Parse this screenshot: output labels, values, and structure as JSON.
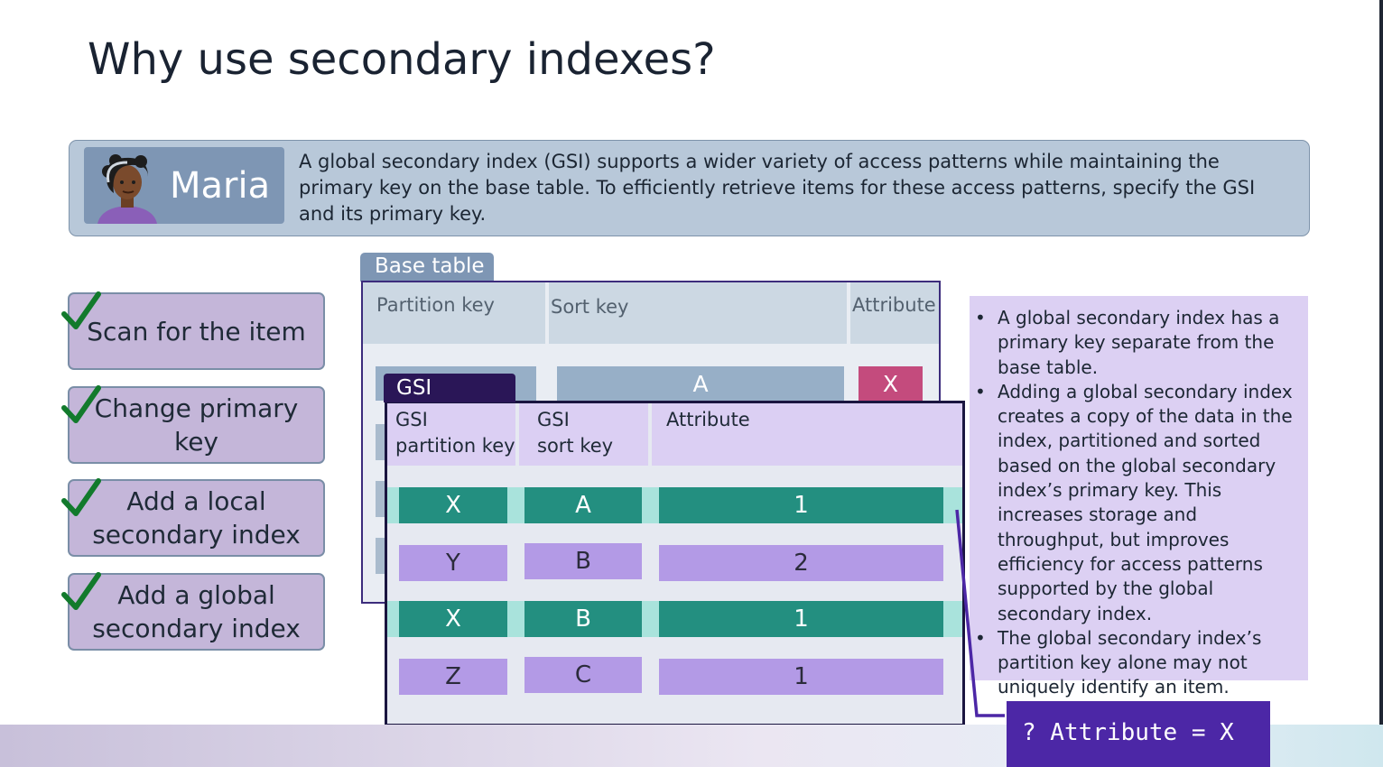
{
  "title": "Why use secondary indexes?",
  "persona": {
    "name": "Maria",
    "message": "A global secondary index (GSI) supports a wider variety of access patterns while maintaining the primary key on the base table. To efficiently retrieve items for these access patterns, specify the GSI and its primary key."
  },
  "steps": [
    {
      "label": "Scan for the item",
      "checked": true
    },
    {
      "label": "Change primary key",
      "checked": true
    },
    {
      "label": "Add a local secondary index",
      "checked": true
    },
    {
      "label": "Add a global secondary index",
      "checked": true
    }
  ],
  "base_table": {
    "tab_label": "Base table",
    "headers": [
      "Partition key",
      "Sort key",
      "Attribute"
    ],
    "visible_row": {
      "sort_key": "A",
      "attribute": "X"
    }
  },
  "gsi_table": {
    "tab_label": "GSI",
    "headers": [
      "GSI\npartition key",
      "GSI\nsort key",
      "Attribute"
    ],
    "rows": [
      {
        "pk": "X",
        "sk": "A",
        "attr": "1",
        "highlighted": true
      },
      {
        "pk": "Y",
        "sk": "B",
        "attr": "2",
        "highlighted": false
      },
      {
        "pk": "X",
        "sk": "B",
        "attr": "1",
        "highlighted": true
      },
      {
        "pk": "Z",
        "sk": "C",
        "attr": "1",
        "highlighted": false
      }
    ]
  },
  "notes": [
    "A global secondary index has a primary key separate from the base table.",
    "Adding a global secondary index creates a copy of the data in the index, partitioned and sorted based on the global secondary index’s primary key. This increases storage and throughput, but improves efficiency for access patterns supported by the global secondary index.",
    "The global secondary index’s partition key alone may not uniquely identify an item."
  ],
  "query": {
    "text": "? Attribute = X"
  },
  "colors": {
    "highlight_row": "#238f80",
    "other_row": "#b39ae6",
    "query_bg": "#4c27a6",
    "check": "#127a2c"
  }
}
